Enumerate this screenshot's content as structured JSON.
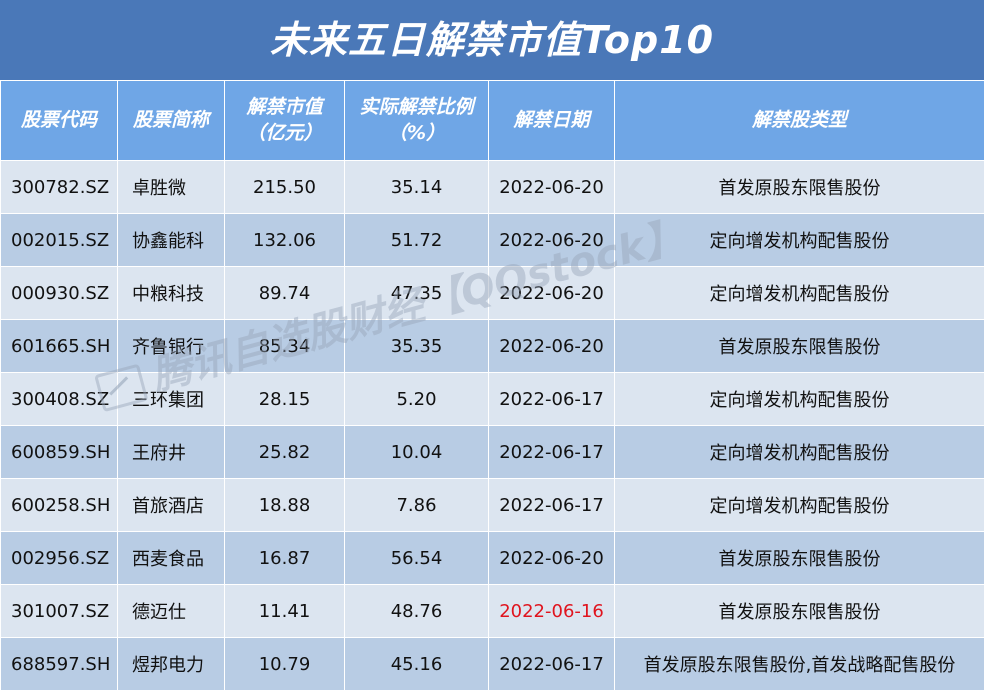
{
  "title": "未来五日解禁市值Top10",
  "headers": {
    "code": "股票代码",
    "name": "股票简称",
    "value_line1": "解禁市值",
    "value_line2": "（亿元）",
    "ratio_line1": "实际解禁比例",
    "ratio_line2": "（%）",
    "date": "解禁日期",
    "type": "解禁股类型"
  },
  "rows": [
    {
      "code": "300782.SZ",
      "name": "卓胜微",
      "value": "215.50",
      "ratio": "35.14",
      "date": "2022-06-20",
      "type": "首发原股东限售股份",
      "highlight": false
    },
    {
      "code": "002015.SZ",
      "name": "协鑫能科",
      "value": "132.06",
      "ratio": "51.72",
      "date": "2022-06-20",
      "type": "定向增发机构配售股份",
      "highlight": false
    },
    {
      "code": "000930.SZ",
      "name": "中粮科技",
      "value": "89.74",
      "ratio": "47.35",
      "date": "2022-06-20",
      "type": "定向增发机构配售股份",
      "highlight": false
    },
    {
      "code": "601665.SH",
      "name": "齐鲁银行",
      "value": "85.34",
      "ratio": "35.35",
      "date": "2022-06-20",
      "type": "首发原股东限售股份",
      "highlight": false
    },
    {
      "code": "300408.SZ",
      "name": "三环集团",
      "value": "28.15",
      "ratio": "5.20",
      "date": "2022-06-17",
      "type": "定向增发机构配售股份",
      "highlight": false
    },
    {
      "code": "600859.SH",
      "name": "王府井",
      "value": "25.82",
      "ratio": "10.04",
      "date": "2022-06-17",
      "type": "定向增发机构配售股份",
      "highlight": false
    },
    {
      "code": "600258.SH",
      "name": "首旅酒店",
      "value": "18.88",
      "ratio": "7.86",
      "date": "2022-06-17",
      "type": "定向增发机构配售股份",
      "highlight": false
    },
    {
      "code": "002956.SZ",
      "name": "西麦食品",
      "value": "16.87",
      "ratio": "56.54",
      "date": "2022-06-20",
      "type": "首发原股东限售股份",
      "highlight": false
    },
    {
      "code": "301007.SZ",
      "name": "德迈仕",
      "value": "11.41",
      "ratio": "48.76",
      "date": "2022-06-16",
      "type": "首发原股东限售股份",
      "highlight": true
    },
    {
      "code": "688597.SH",
      "name": "煜邦电力",
      "value": "10.79",
      "ratio": "45.16",
      "date": "2022-06-17",
      "type": "首发原股东限售股份,首发战略配售股份",
      "highlight": false
    }
  ],
  "watermark": "腾讯自选股财经【QQstock】",
  "colors": {
    "title_bg": "#4a78b8",
    "header_bg": "#6fa6e6",
    "row_light": "#dce5f0",
    "row_dark": "#b8cce4",
    "highlight_date": "#e0141e"
  }
}
